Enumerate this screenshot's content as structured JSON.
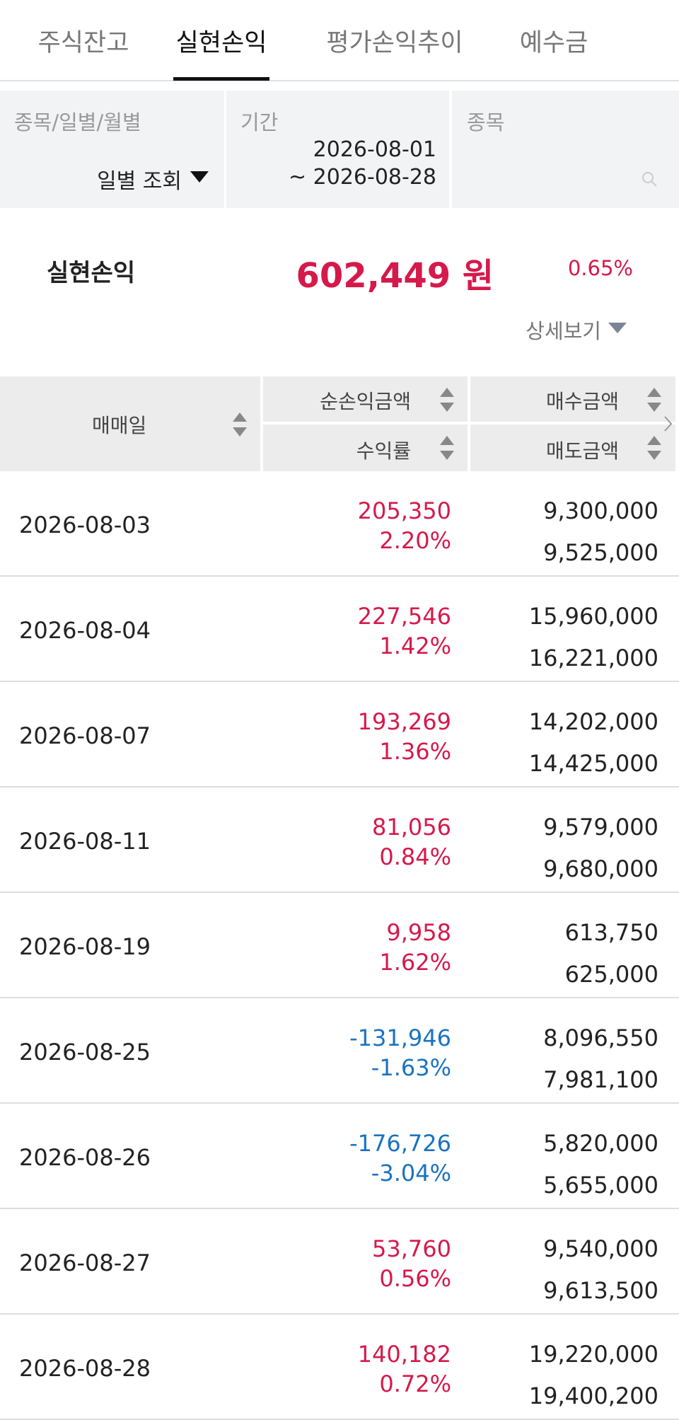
{
  "tabs": {
    "items": [
      "주식잔고",
      "실현손익",
      "평가손익추이",
      "예수금"
    ],
    "active": 1
  },
  "filters": [
    {
      "label": "종목/일별/월별",
      "value": "일별 조회"
    },
    {
      "label": "기간",
      "from": "2026-08-01",
      "to": "~ 2026-08-28"
    },
    {
      "label": "종목"
    }
  ],
  "summary": {
    "label": "실현손익",
    "amount": "602,449 원",
    "rate": "0.65%",
    "detail": "상세보기"
  },
  "table": {
    "headers": {
      "date": "매매일",
      "profit": "순손익금액",
      "rate": "수익률",
      "buy": "매수금액",
      "sell": "매도금액"
    },
    "rows": [
      [
        "2026-08-03",
        "205,350",
        "2.20%",
        "9,300,000",
        "9,525,000"
      ],
      [
        "2026-08-04",
        "227,546",
        "1.42%",
        "15,960,000",
        "16,221,000"
      ],
      [
        "2026-08-07",
        "193,269",
        "1.36%",
        "14,202,000",
        "14,425,000"
      ],
      [
        "2026-08-11",
        "81,056",
        "0.84%",
        "9,579,000",
        "9,680,000"
      ],
      [
        "2026-08-19",
        "9,958",
        "1.62%",
        "613,750",
        "625,000"
      ],
      [
        "2026-08-25",
        "-131,946",
        "-1.63%",
        "8,096,550",
        "7,981,100"
      ],
      [
        "2026-08-26",
        "-176,726",
        "-3.04%",
        "5,820,000",
        "5,655,000"
      ],
      [
        "2026-08-27",
        "53,760",
        "0.56%",
        "9,540,000",
        "9,613,500"
      ],
      [
        "2026-08-28",
        "140,182",
        "0.72%",
        "19,220,000",
        "19,400,200"
      ]
    ]
  }
}
